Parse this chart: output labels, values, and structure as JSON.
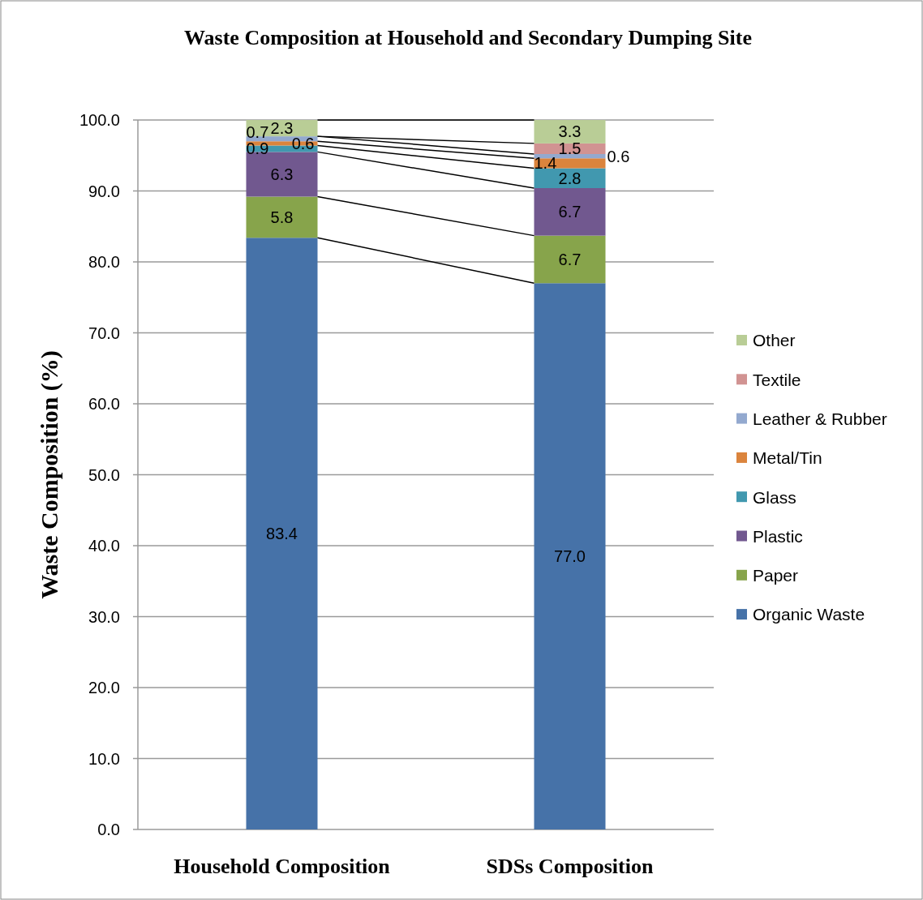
{
  "chart_data": {
    "type": "bar",
    "stacked": true,
    "title": "Waste Composition at Household and Secondary Dumping Site",
    "ylabel": "Waste Composition (%)",
    "categories": [
      "Household Composition",
      "SDSs Composition"
    ],
    "series": [
      {
        "name": "Organic Waste",
        "color": "#4672a8",
        "values": [
          83.4,
          77.0
        ],
        "value_labels": [
          "83.4",
          "77.0"
        ]
      },
      {
        "name": "Paper",
        "color": "#87a44b",
        "values": [
          5.8,
          6.7
        ],
        "value_labels": [
          "5.8",
          "6.7"
        ]
      },
      {
        "name": "Plastic",
        "color": "#71588f",
        "values": [
          6.3,
          6.7
        ],
        "value_labels": [
          "6.3",
          "6.7"
        ]
      },
      {
        "name": "Glass",
        "color": "#4198af",
        "values": [
          0.9,
          2.8
        ],
        "value_labels": [
          "0.9",
          "2.8"
        ]
      },
      {
        "name": "Metal/Tin",
        "color": "#db843d",
        "values": [
          0.6,
          1.4
        ],
        "value_labels": [
          "0.6",
          "1.4"
        ]
      },
      {
        "name": "Leather & Rubber",
        "color": "#93a9cf",
        "values": [
          0.7,
          0.6
        ],
        "value_labels": [
          "0.7",
          "0.6"
        ]
      },
      {
        "name": "Textile",
        "color": "#d19392",
        "values": [
          0,
          1.5
        ],
        "value_labels": [
          null,
          "1.5"
        ]
      },
      {
        "name": "Other",
        "color": "#b9cd96",
        "values": [
          2.3,
          3.3
        ],
        "value_labels": [
          "2.3",
          "3.3"
        ]
      }
    ],
    "ylim": [
      0,
      100
    ],
    "yticks": [
      {
        "value": 0,
        "label": "0.0"
      },
      {
        "value": 10,
        "label": "10.0"
      },
      {
        "value": 20,
        "label": "20.0"
      },
      {
        "value": 30,
        "label": "30.0"
      },
      {
        "value": 40,
        "label": "40.0"
      },
      {
        "value": 50,
        "label": "50.0"
      },
      {
        "value": 60,
        "label": "60.0"
      },
      {
        "value": 70,
        "label": "70.0"
      },
      {
        "value": 80,
        "label": "80.0"
      },
      {
        "value": 90,
        "label": "90.0"
      },
      {
        "value": 100,
        "label": "100.0"
      }
    ],
    "grid": "y",
    "legend": "right"
  }
}
